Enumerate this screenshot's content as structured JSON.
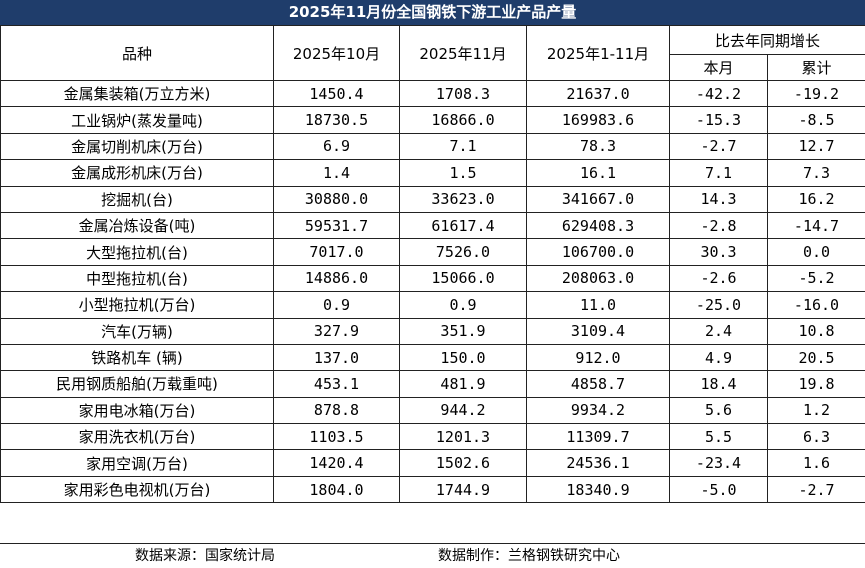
{
  "title": "2025年11月份全国钢铁下游工业产品产量",
  "headers": {
    "product": "品种",
    "oct": "2025年10月",
    "nov": "2025年11月",
    "ytd": "2025年1-11月",
    "yoy_group": "比去年同期增长",
    "month": "本月",
    "cumulative": "累计"
  },
  "rows": [
    {
      "name": "金属集装箱(万立方米)",
      "oct": "1450.4",
      "nov": "1708.3",
      "ytd": "21637.0",
      "month": "-42.2",
      "cum": "-19.2"
    },
    {
      "name": "工业锅炉(蒸发量吨)",
      "oct": "18730.5",
      "nov": "16866.0",
      "ytd": "169983.6",
      "month": "-15.3",
      "cum": "-8.5"
    },
    {
      "name": "金属切削机床(万台)",
      "oct": "6.9",
      "nov": "7.1",
      "ytd": "78.3",
      "month": "-2.7",
      "cum": "12.7"
    },
    {
      "name": "金属成形机床(万台)",
      "oct": "1.4",
      "nov": "1.5",
      "ytd": "16.1",
      "month": "7.1",
      "cum": "7.3"
    },
    {
      "name": "挖掘机(台)",
      "oct": "30880.0",
      "nov": "33623.0",
      "ytd": "341667.0",
      "month": "14.3",
      "cum": "16.2"
    },
    {
      "name": "金属冶炼设备(吨)",
      "oct": "59531.7",
      "nov": "61617.4",
      "ytd": "629408.3",
      "month": "-2.8",
      "cum": "-14.7"
    },
    {
      "name": "大型拖拉机(台)",
      "oct": "7017.0",
      "nov": "7526.0",
      "ytd": "106700.0",
      "month": "30.3",
      "cum": "0.0"
    },
    {
      "name": "中型拖拉机(台)",
      "oct": "14886.0",
      "nov": "15066.0",
      "ytd": "208063.0",
      "month": "-2.6",
      "cum": "-5.2"
    },
    {
      "name": "小型拖拉机(万台)",
      "oct": "0.9",
      "nov": "0.9",
      "ytd": "11.0",
      "month": "-25.0",
      "cum": "-16.0"
    },
    {
      "name": "汽车(万辆)",
      "oct": "327.9",
      "nov": "351.9",
      "ytd": "3109.4",
      "month": "2.4",
      "cum": "10.8"
    },
    {
      "name": "铁路机车 (辆)",
      "oct": "137.0",
      "nov": "150.0",
      "ytd": "912.0",
      "month": "4.9",
      "cum": "20.5"
    },
    {
      "name": "民用钢质船舶(万载重吨)",
      "oct": "453.1",
      "nov": "481.9",
      "ytd": "4858.7",
      "month": "18.4",
      "cum": "19.8"
    },
    {
      "name": "家用电冰箱(万台)",
      "oct": "878.8",
      "nov": "944.2",
      "ytd": "9934.2",
      "month": "5.6",
      "cum": "1.2"
    },
    {
      "name": "家用洗衣机(万台)",
      "oct": "1103.5",
      "nov": "1201.3",
      "ytd": "11309.7",
      "month": "5.5",
      "cum": "6.3"
    },
    {
      "name": "家用空调(万台)",
      "oct": "1420.4",
      "nov": "1502.6",
      "ytd": "24536.1",
      "month": "-23.4",
      "cum": "1.6"
    },
    {
      "name": "家用彩色电视机(万台)",
      "oct": "1804.0",
      "nov": "1744.9",
      "ytd": "18340.9",
      "month": "-5.0",
      "cum": "-2.7"
    }
  ],
  "footer": {
    "source": "数据来源：国家统计局",
    "maker": "数据制作：兰格钢铁研究中心"
  },
  "colors": {
    "title_bg": "#1f3d6b",
    "title_fg": "#ffffff"
  }
}
